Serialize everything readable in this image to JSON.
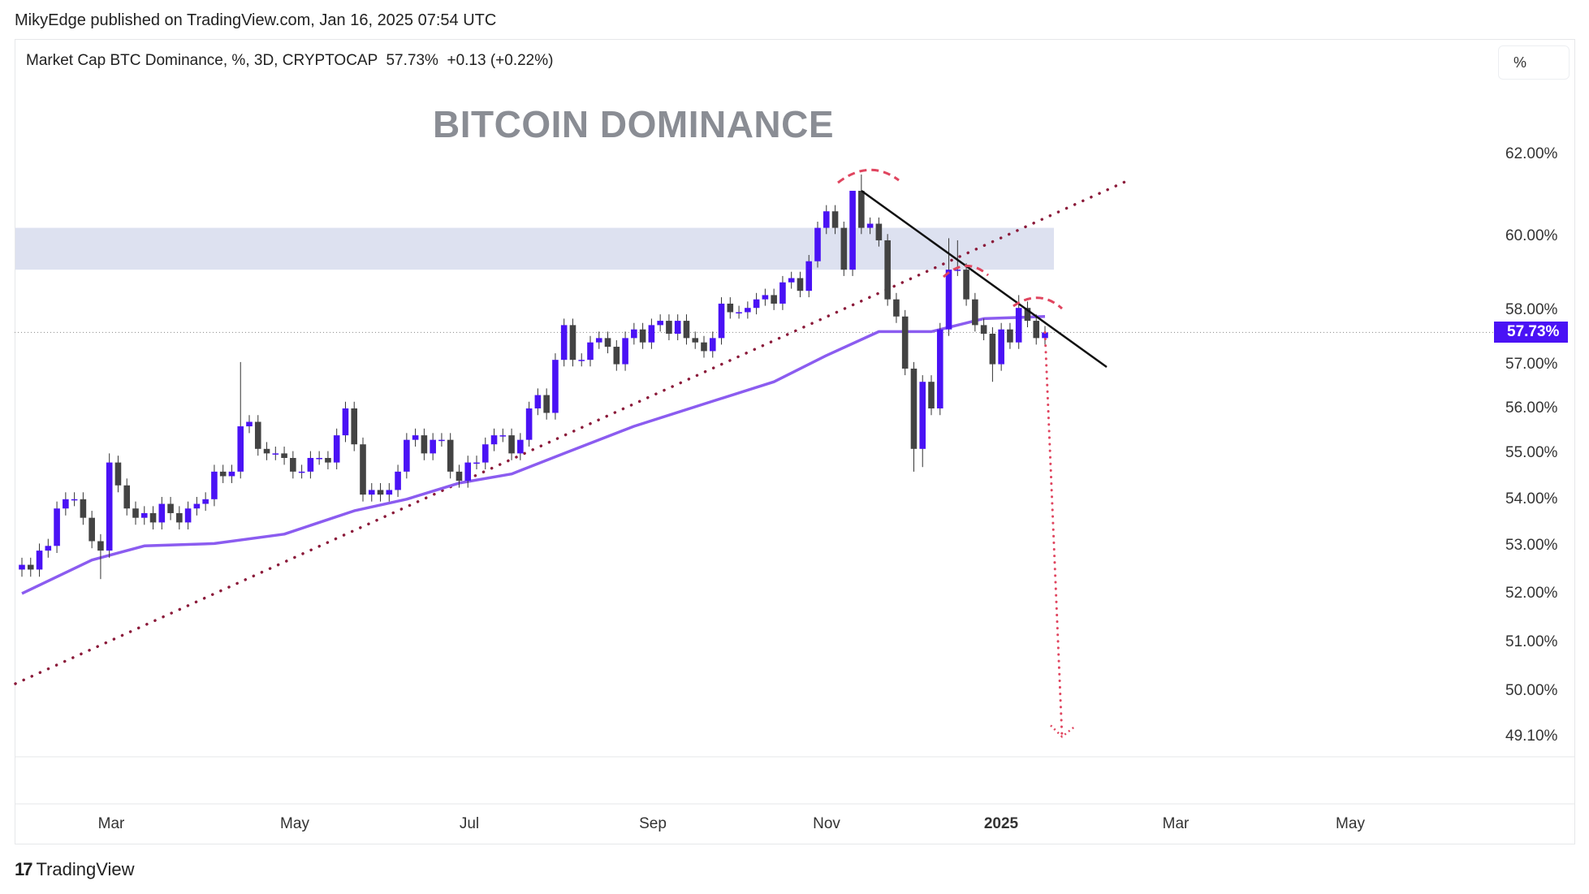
{
  "header": {
    "published": "MikyEdge published on TradingView.com, Jan 16, 2025 07:54 UTC",
    "legend": "Market Cap BTC Dominance, %, 3D, CRYPTOCAP  57.73%  +0.13 (+0.22%)",
    "unit_button": "%"
  },
  "footer": {
    "brand": "TradingView",
    "logo_icon": "tradingview-logo-icon"
  },
  "chart_data": {
    "type": "candlestick",
    "title": "BITCOIN DOMINANCE",
    "interval": "3D",
    "y_scale": "log",
    "ylim": [
      48.6,
      62.6
    ],
    "grid": false,
    "colors": {
      "up": "#4a12f5",
      "down": "#434343",
      "ma": "#8b5cf0",
      "zone": "#dde1f0",
      "support_line": "#8b1a3a",
      "resistance_line": "#111111",
      "annotation": "#e0455f",
      "price_badge": "#4a12f5"
    },
    "first_open": 52.5,
    "closes": [
      52.6,
      52.5,
      52.9,
      53.0,
      53.8,
      54.0,
      54.0,
      53.6,
      53.1,
      52.9,
      54.8,
      54.3,
      53.8,
      53.6,
      53.7,
      53.5,
      53.9,
      53.7,
      53.5,
      53.8,
      53.9,
      54.0,
      54.6,
      54.5,
      54.6,
      55.6,
      55.7,
      55.1,
      55.0,
      55.0,
      54.9,
      54.6,
      54.6,
      54.9,
      54.9,
      54.8,
      55.4,
      56.0,
      55.2,
      54.1,
      54.2,
      54.1,
      54.2,
      54.6,
      55.3,
      55.4,
      55.0,
      55.3,
      55.3,
      54.6,
      54.4,
      54.8,
      54.8,
      55.2,
      55.4,
      55.4,
      55.0,
      55.3,
      56.0,
      56.3,
      55.9,
      57.1,
      57.9,
      57.1,
      57.1,
      57.5,
      57.6,
      57.4,
      57.0,
      57.6,
      57.8,
      57.5,
      57.9,
      58.0,
      57.7,
      58.0,
      57.6,
      57.5,
      57.3,
      57.6,
      58.4,
      58.2,
      58.2,
      58.3,
      58.5,
      58.6,
      58.4,
      58.9,
      59.0,
      58.7,
      59.4,
      60.2,
      60.6,
      60.2,
      59.2,
      61.1,
      60.2,
      60.3,
      59.9,
      58.5,
      58.1,
      56.9,
      55.1,
      56.6,
      56.0,
      57.8,
      59.2,
      59.2,
      58.5,
      57.9,
      57.7,
      57.0,
      57.8,
      57.5,
      58.3,
      58.0,
      57.6,
      57.73
    ],
    "wick_highs": {
      "10": 55.0,
      "25": 57.05,
      "95": 61.05,
      "96": 61.5,
      "106": 59.95,
      "107": 59.9,
      "114": 58.6
    },
    "wick_lows": {
      "9": 52.3,
      "102": 54.6,
      "103": 54.7,
      "111": 56.6
    },
    "moving_average": [
      [
        0,
        52.0
      ],
      [
        8,
        52.7
      ],
      [
        14,
        53.0
      ],
      [
        22,
        53.05
      ],
      [
        30,
        53.25
      ],
      [
        38,
        53.75
      ],
      [
        44,
        54.0
      ],
      [
        50,
        54.35
      ],
      [
        56,
        54.55
      ],
      [
        62,
        55.0
      ],
      [
        70,
        55.6
      ],
      [
        78,
        56.1
      ],
      [
        86,
        56.6
      ],
      [
        92,
        57.2
      ],
      [
        98,
        57.75
      ],
      [
        104,
        57.75
      ],
      [
        110,
        58.05
      ],
      [
        117,
        58.1
      ]
    ],
    "last_price": 57.73,
    "last_price_label": "57.73%",
    "price_ticks": [
      {
        "value": 62,
        "label": "62.00%"
      },
      {
        "value": 60,
        "label": "60.00%"
      },
      {
        "value": 58,
        "label": "58.00%"
      },
      {
        "value": 57,
        "label": "57.00%"
      },
      {
        "value": 56,
        "label": "56.00%"
      },
      {
        "value": 55,
        "label": "55.00%"
      },
      {
        "value": 54,
        "label": "54.00%"
      },
      {
        "value": 53,
        "label": "53.00%"
      },
      {
        "value": 52,
        "label": "52.00%"
      },
      {
        "value": 51,
        "label": "51.00%"
      },
      {
        "value": 50,
        "label": "50.00%"
      },
      {
        "value": 49.1,
        "label": "49.10%"
      }
    ],
    "time_ticks": [
      "Mar",
      "May",
      "Jul",
      "Sep",
      "Nov",
      "2025",
      "Mar",
      "May"
    ],
    "drawings": {
      "resistance_zone": [
        59.2,
        60.2
      ],
      "target": 49.1
    }
  }
}
